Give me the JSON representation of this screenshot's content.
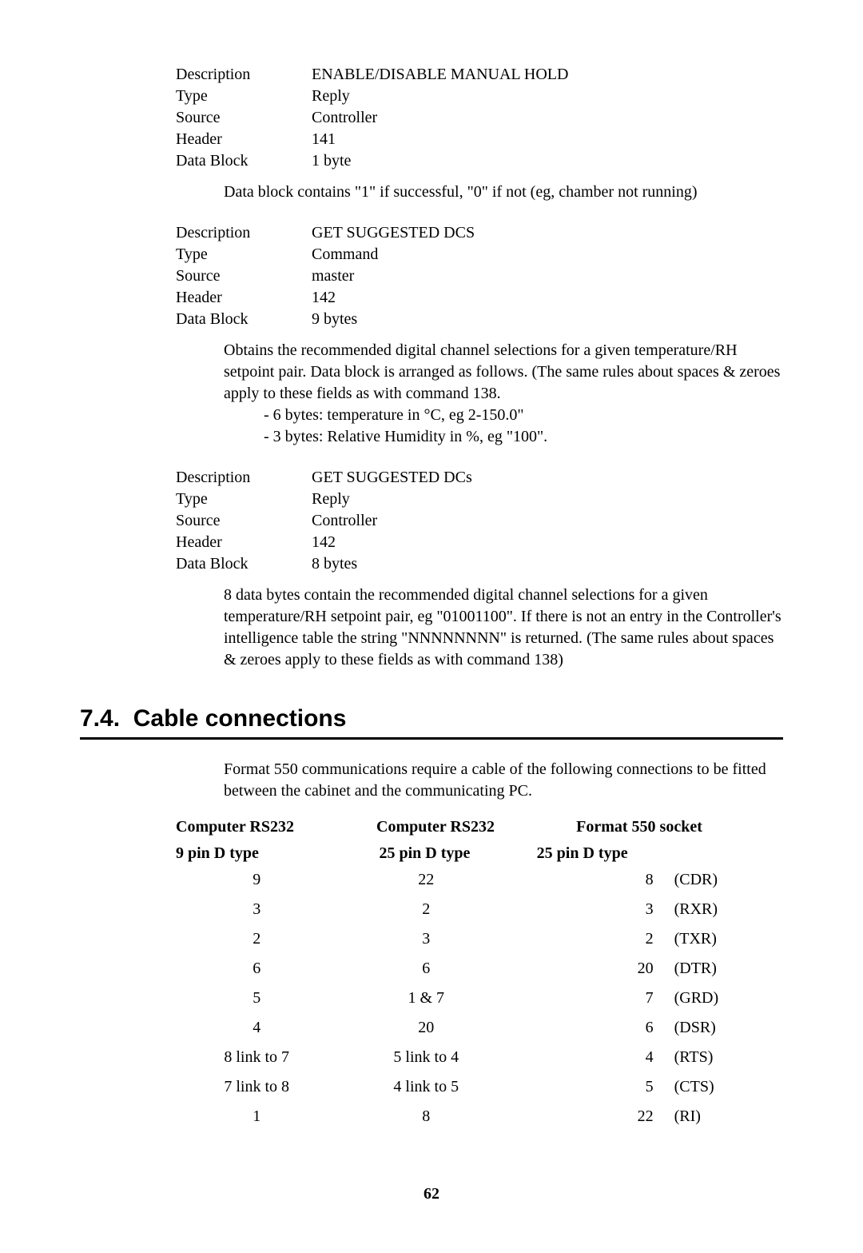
{
  "specs": [
    {
      "rows": [
        {
          "label": "Description",
          "value": "ENABLE/DISABLE MANUAL HOLD"
        },
        {
          "label": "Type",
          "value": "Reply"
        },
        {
          "label": "Source",
          "value": "Controller"
        },
        {
          "label": "Header",
          "value": "141"
        },
        {
          "label": "Data Block",
          "value": "1 byte"
        }
      ],
      "note": "Data block contains \"1\" if successful, \"0\" if not (eg, chamber not running)"
    },
    {
      "rows": [
        {
          "label": "Description",
          "value": "GET SUGGESTED DCS"
        },
        {
          "label": "Type",
          "value": "Command"
        },
        {
          "label": "Source",
          "value": "master"
        },
        {
          "label": "Header",
          "value": "142"
        },
        {
          "label": "Data Block",
          "value": "9 bytes"
        }
      ],
      "note": "Obtains the recommended digital channel selections for a given temperature/RH setpoint pair. Data block is arranged as follows. (The same rules about spaces & zeroes apply to these fields as with command 138.",
      "note_bullets": [
        "- 6 bytes: temperature in °C, eg 2-150.0\"",
        "- 3 bytes: Relative Humidity in %, eg \"100\"."
      ]
    },
    {
      "rows": [
        {
          "label": "Description",
          "value": "GET SUGGESTED DCs"
        },
        {
          "label": "Type",
          "value": "Reply"
        },
        {
          "label": "Source",
          "value": "Controller"
        },
        {
          "label": "Header",
          "value": "142"
        },
        {
          "label": "Data Block",
          "value": "8 bytes"
        }
      ],
      "note": "8 data bytes contain the recommended digital channel selections for a given temperature/RH setpoint pair, eg \"01001100\". If there is not an entry in the Controller's intelligence table the string \"NNNNNNNN\" is returned. (The same rules about spaces & zeroes apply to these fields as with command 138)"
    }
  ],
  "section": {
    "number": "7.4.",
    "title": "Cable connections"
  },
  "cable_intro": "Format 550 communications require a cable of the following connections to be fitted between the cabinet and the communicating PC.",
  "cable_table": {
    "header1": [
      "Computer RS232",
      "Computer RS232",
      "Format 550 socket"
    ],
    "header2": [
      "9 pin D type",
      "25 pin D type",
      "25 pin D type"
    ],
    "rows": [
      {
        "c1": "9",
        "c2": "22",
        "c3": "8",
        "c4": "(CDR)"
      },
      {
        "c1": "3",
        "c2": "2",
        "c3": "3",
        "c4": "(RXR)"
      },
      {
        "c1": "2",
        "c2": "3",
        "c3": "2",
        "c4": "(TXR)"
      },
      {
        "c1": "6",
        "c2": "6",
        "c3": "20",
        "c4": "(DTR)"
      },
      {
        "c1": "5",
        "c2": "1 & 7",
        "c3": "7",
        "c4": "(GRD)"
      },
      {
        "c1": "4",
        "c2": "20",
        "c3": "6",
        "c4": "(DSR)"
      },
      {
        "c1": "8 link to 7",
        "c2": "5 link to 4",
        "c3": "4",
        "c4": "(RTS)"
      },
      {
        "c1": "7 link to 8",
        "c2": "4 link to 5",
        "c3": "5",
        "c4": "(CTS)"
      },
      {
        "c1": "1",
        "c2": "8",
        "c3": "22",
        "c4": "(RI)"
      }
    ]
  },
  "page_number": "62"
}
